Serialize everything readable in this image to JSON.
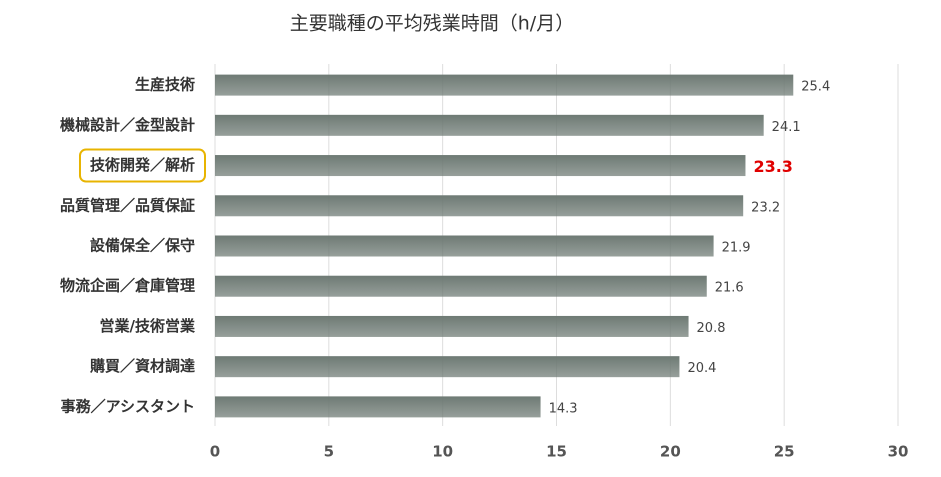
{
  "chart_data": {
    "type": "bar",
    "orientation": "horizontal",
    "title": "主要職種の平均残業時間（h/月）",
    "categories": [
      "生産技術",
      "機械設計／金型設計",
      "技術開発／解析",
      "品質管理／品質保証",
      "設備保全／保守",
      "物流企画／倉庫管理",
      "営業/技術営業",
      "購買／資材調達",
      "事務／アシスタント"
    ],
    "values": [
      25.4,
      24.1,
      23.3,
      23.2,
      21.9,
      21.6,
      20.8,
      20.4,
      14.3
    ],
    "color": "#6e7a74",
    "highlight_index": 2,
    "highlight_box_color": "#e8b400",
    "highlight_label_color": "#e00000",
    "xlim": [
      0,
      30
    ],
    "xticks": [
      0,
      5,
      10,
      15,
      20,
      25,
      30
    ],
    "grid": true
  }
}
